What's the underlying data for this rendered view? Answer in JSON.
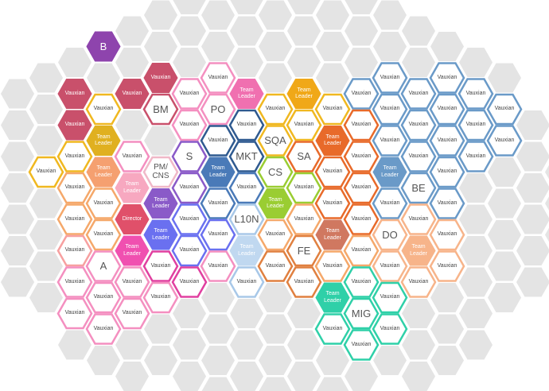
{
  "nodes": [
    {
      "label": "Vauxian",
      "color": "#f0b820"
    },
    {
      "label": "Vauxian",
      "color": "#c9506b"
    },
    {
      "label": "Vauxian",
      "color": "#c9506b"
    },
    {
      "label": "Vauxian",
      "color": "#f0b820"
    },
    {
      "label": "Vauxian",
      "color": "#f5a86a"
    },
    {
      "label": "Vauxian",
      "color": "#f5a86a"
    },
    {
      "label": "Vauxian",
      "color": "#f7a0a0"
    },
    {
      "label": "Vauxian",
      "color": "#f48fc0"
    },
    {
      "label": "Vauxian",
      "color": "#f48fc0"
    },
    {
      "label": "B",
      "color": "#8e44ad"
    },
    {
      "label": "Vauxian",
      "color": "#f0b820"
    },
    {
      "label": "Team Leader",
      "color": "#e0b020"
    },
    {
      "label": "Team Leader",
      "color": "#f5a070"
    },
    {
      "label": "Vauxian",
      "color": "#f5a86a"
    },
    {
      "label": "Vauxian",
      "color": "#f5a86a"
    },
    {
      "label": "A",
      "color": "#f48fc0"
    },
    {
      "label": "Vauxian",
      "color": "#f48fc0"
    },
    {
      "label": "Vauxian",
      "color": "#f48fc0"
    },
    {
      "label": "Vauxian",
      "color": "#c9506b"
    },
    {
      "label": "Vauxian",
      "color": "#f48fc0"
    },
    {
      "label": "Team Leader",
      "color": "#f7a8c0"
    },
    {
      "label": "Director",
      "color": "#e0506a"
    },
    {
      "label": "Team Leader",
      "color": "#f050b0"
    },
    {
      "label": "Vauxian",
      "color": "#f48fc0"
    },
    {
      "label": "Vauxian",
      "color": "#f48fc0"
    },
    {
      "label": "Vauxian",
      "color": "#c9506b"
    },
    {
      "label": "BM",
      "color": "#c9506b"
    },
    {
      "label": "PM/ CNS",
      "color": "#f0b8c8"
    },
    {
      "label": "Team Leader",
      "color": "#8a5ac8"
    },
    {
      "label": "Team Leader",
      "color": "#6a70f0"
    },
    {
      "label": "Vauxian",
      "color": "#e040a0"
    },
    {
      "label": "Vauxian",
      "color": "#f48fc0"
    },
    {
      "label": "Vauxian",
      "color": "#f48fc0"
    },
    {
      "label": "Vauxian",
      "color": "#f48fc0"
    },
    {
      "label": "S",
      "color": "#8a5ac8"
    },
    {
      "label": "Vauxian",
      "color": "#8a5ac8"
    },
    {
      "label": "Vauxian",
      "color": "#6a70f0"
    },
    {
      "label": "Vauxian",
      "color": "#6a70f0"
    },
    {
      "label": "Vauxian",
      "color": "#e040a0"
    },
    {
      "label": "Vauxian",
      "color": "#f48fc0"
    },
    {
      "label": "PO",
      "color": "#f48fc0"
    },
    {
      "label": "Vauxian",
      "color": "#2f5a90"
    },
    {
      "label": "Team Leader",
      "color": "#4a7ab8"
    },
    {
      "label": "Vauxian",
      "color": "#4a7ab8"
    },
    {
      "label": "Vauxian",
      "color": "#6a70f0"
    },
    {
      "label": "Vauxian",
      "color": "#f48fc0"
    },
    {
      "label": "Team Leader",
      "color": "#f070b0"
    },
    {
      "label": "Vauxian",
      "color": "#2f5a90"
    },
    {
      "label": "MKT",
      "color": "#2f5a90"
    },
    {
      "label": "Vauxian",
      "color": "#4a7ab8"
    },
    {
      "label": "L10N",
      "color": "#a8c8e8"
    },
    {
      "label": "Team Leader",
      "color": "#c0d8f0"
    },
    {
      "label": "Vauxian",
      "color": "#a8c8e8"
    },
    {
      "label": "Vauxian",
      "color": "#f0b820"
    },
    {
      "label": "SQA",
      "color": "#f0b820"
    },
    {
      "label": "CS",
      "color": "#9acd32"
    },
    {
      "label": "Team Leader",
      "color": "#9acd32"
    },
    {
      "label": "Vauxian",
      "color": "#f5a86a"
    },
    {
      "label": "Vauxian",
      "color": "#e08040"
    },
    {
      "label": "Team Leader",
      "color": "#f0a818"
    },
    {
      "label": "Vauxian",
      "color": "#f0b820"
    },
    {
      "label": "SA",
      "color": "#e86a2a"
    },
    {
      "label": "Vauxian",
      "color": "#9acd32"
    },
    {
      "label": "Vauxian",
      "color": "#f5a86a"
    },
    {
      "label": "FE",
      "color": "#e08040"
    },
    {
      "label": "Vauxian",
      "color": "#e08040"
    },
    {
      "label": "Vauxian",
      "color": "#f0b820"
    },
    {
      "label": "Team Leader",
      "color": "#e86a2a"
    },
    {
      "label": "Vauxian",
      "color": "#e86a2a"
    },
    {
      "label": "Vauxian",
      "color": "#e86a2a"
    },
    {
      "label": "Team Leader",
      "color": "#d07860"
    },
    {
      "label": "Vauxian",
      "color": "#f5a86a"
    },
    {
      "label": "Team Leader",
      "color": "#2fd0a8"
    },
    {
      "label": "Vauxian",
      "color": "#2fd0a8"
    },
    {
      "label": "Vauxian",
      "color": "#6a9ac8"
    },
    {
      "label": "Vauxian",
      "color": "#e86a2a"
    },
    {
      "label": "Vauxian",
      "color": "#e86a2a"
    },
    {
      "label": "Vauxian",
      "color": "#e86a2a"
    },
    {
      "label": "Vauxian",
      "color": "#e86a2a"
    },
    {
      "label": "Vauxian",
      "color": "#f5a86a"
    },
    {
      "label": "Vauxian",
      "color": "#2fd0a8"
    },
    {
      "label": "MIG",
      "color": "#2fd0a8"
    },
    {
      "label": "Vauxian",
      "color": "#2fd0a8"
    },
    {
      "label": "Vauxian",
      "color": "#6a9ac8"
    },
    {
      "label": "Vauxian",
      "color": "#6a9ac8"
    },
    {
      "label": "Vauxian",
      "color": "#6a9ac8"
    },
    {
      "label": "Team Leader",
      "color": "#6a9ac8"
    },
    {
      "label": "Vauxian",
      "color": "#6a9ac8"
    },
    {
      "label": "DO",
      "color": "#f7b48a"
    },
    {
      "label": "Vauxian",
      "color": "#f7b48a"
    },
    {
      "label": "Vauxian",
      "color": "#2fd0a8"
    },
    {
      "label": "Vauxian",
      "color": "#2fd0a8"
    },
    {
      "label": "Vauxian",
      "color": "#6a9ac8"
    },
    {
      "label": "Vauxian",
      "color": "#6a9ac8"
    },
    {
      "label": "Vauxian",
      "color": "#6a9ac8"
    },
    {
      "label": "BE",
      "color": "#6a9ac8"
    },
    {
      "label": "Vauxian",
      "color": "#f7b48a"
    },
    {
      "label": "Team Leader",
      "color": "#f7b48a"
    },
    {
      "label": "Vauxian",
      "color": "#f7b48a"
    },
    {
      "label": "Vauxian",
      "color": "#6a9ac8"
    },
    {
      "label": "Vauxian",
      "color": "#6a9ac8"
    },
    {
      "label": "Vauxian",
      "color": "#6a9ac8"
    },
    {
      "label": "Vauxian",
      "color": "#6a9ac8"
    },
    {
      "label": "Vauxian",
      "color": "#6a9ac8"
    },
    {
      "label": "Vauxian",
      "color": "#f7b48a"
    },
    {
      "label": "Vauxian",
      "color": "#f7b48a"
    },
    {
      "label": "Vauxian",
      "color": "#6a9ac8"
    },
    {
      "label": "Vauxian",
      "color": "#6a9ac8"
    },
    {
      "label": "Vauxian",
      "color": "#6a9ac8"
    },
    {
      "label": "Vauxian",
      "color": "#6a9ac8"
    },
    {
      "label": "Vauxian",
      "color": "#6a9ac8"
    }
  ]
}
